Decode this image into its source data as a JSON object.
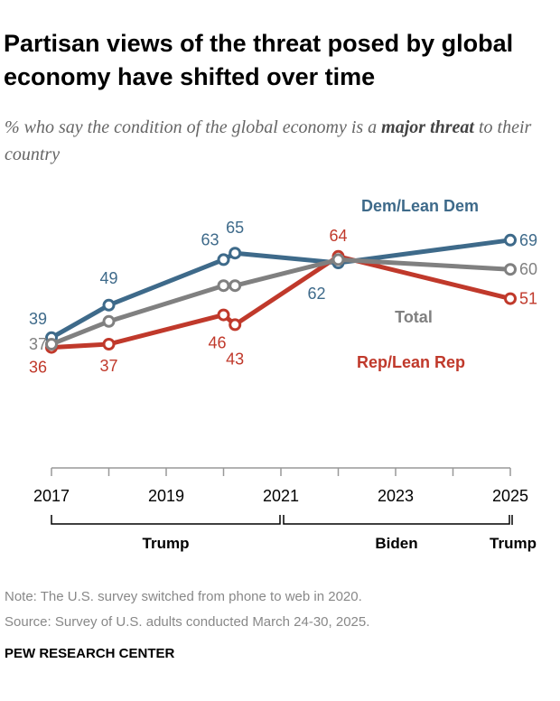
{
  "title": "Partisan views of the threat posed by global economy have shifted over time",
  "subtitle": {
    "before": "% who say the condition of the global economy is a ",
    "bold": "major threat",
    "after": " to their country"
  },
  "chart_data": {
    "type": "line",
    "x": [
      2017,
      2018,
      2020,
      2020.2,
      2022,
      2025
    ],
    "xlim": [
      2017,
      2025
    ],
    "x_tick_labels": [
      "2017",
      "2019",
      "2021",
      "2023",
      "2025"
    ],
    "grid": false,
    "series": [
      {
        "name": "Dem/Lean Dem",
        "color": "#3e6a8a",
        "values": [
          39,
          49,
          63,
          65,
          62,
          69
        ],
        "labels": [
          "39",
          "49",
          "63",
          "65",
          "62",
          "69"
        ]
      },
      {
        "name": "Total",
        "color": "#808080",
        "values": [
          37,
          44,
          55,
          55,
          63,
          60
        ],
        "labels": [
          "37",
          "",
          "",
          "",
          "",
          "60"
        ]
      },
      {
        "name": "Rep/Lean Rep",
        "color": "#c0392b",
        "values": [
          36,
          37,
          46,
          43,
          64,
          51
        ],
        "labels": [
          "36",
          "37",
          "46",
          "43",
          "64",
          "51"
        ]
      }
    ],
    "periods": [
      {
        "label": "Trump",
        "from": 2017,
        "to": 2021
      },
      {
        "label": "Biden",
        "from": 2021,
        "to": 2025
      },
      {
        "label": "Trump",
        "from": 2025,
        "to": 2025
      }
    ]
  },
  "notes": {
    "note": "Note: The U.S. survey switched from phone to web in 2020.",
    "source": "Source: Survey of U.S. adults conducted March 24-30, 2025."
  },
  "brand": "PEW RESEARCH CENTER"
}
